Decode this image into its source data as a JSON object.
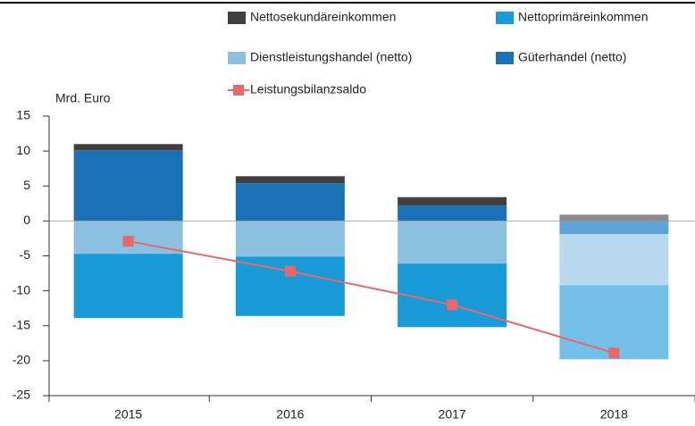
{
  "chart_data": {
    "type": "bar",
    "y_axis_label": "Mrd. Euro",
    "categories": [
      "2015",
      "2016",
      "2017",
      "2018"
    ],
    "series": [
      {
        "name": "Güterhandel (netto)",
        "color": "#1b71b6",
        "colors": [
          "#1b71b6",
          "#1b71b6",
          "#1b71b6",
          "#5ea4d9"
        ],
        "values": [
          10.1,
          5.4,
          2.2,
          -1.9
        ]
      },
      {
        "name": "Dienstleistungshandel (netto)",
        "color": "#8cc0e1",
        "colors": [
          "#8cc0e1",
          "#8cc0e1",
          "#8cc0e1",
          "#b8d9ee"
        ],
        "values": [
          -4.7,
          -5.1,
          -6.1,
          -7.3
        ]
      },
      {
        "name": "Nettoprimäreinkommen",
        "color": "#199bd8",
        "colors": [
          "#199bd8",
          "#199bd8",
          "#199bd8",
          "#72c0e9"
        ],
        "values": [
          -9.2,
          -8.5,
          -9.1,
          -10.6
        ]
      },
      {
        "name": "Nettosekundäreinkommen",
        "color": "#404040",
        "colors": [
          "#404040",
          "#404040",
          "#404040",
          "#8c8c8c"
        ],
        "values": [
          0.9,
          1.0,
          1.2,
          0.9
        ]
      },
      {
        "name": "Leistungsbilanzsaldo",
        "type": "line",
        "color": "#e8676a",
        "values": [
          -2.9,
          -7.2,
          -12.0,
          -18.9
        ]
      }
    ],
    "ylim": [
      -25,
      15
    ],
    "yticks": [
      -25,
      -20,
      -15,
      -10,
      -5,
      0,
      5,
      10,
      15
    ]
  }
}
